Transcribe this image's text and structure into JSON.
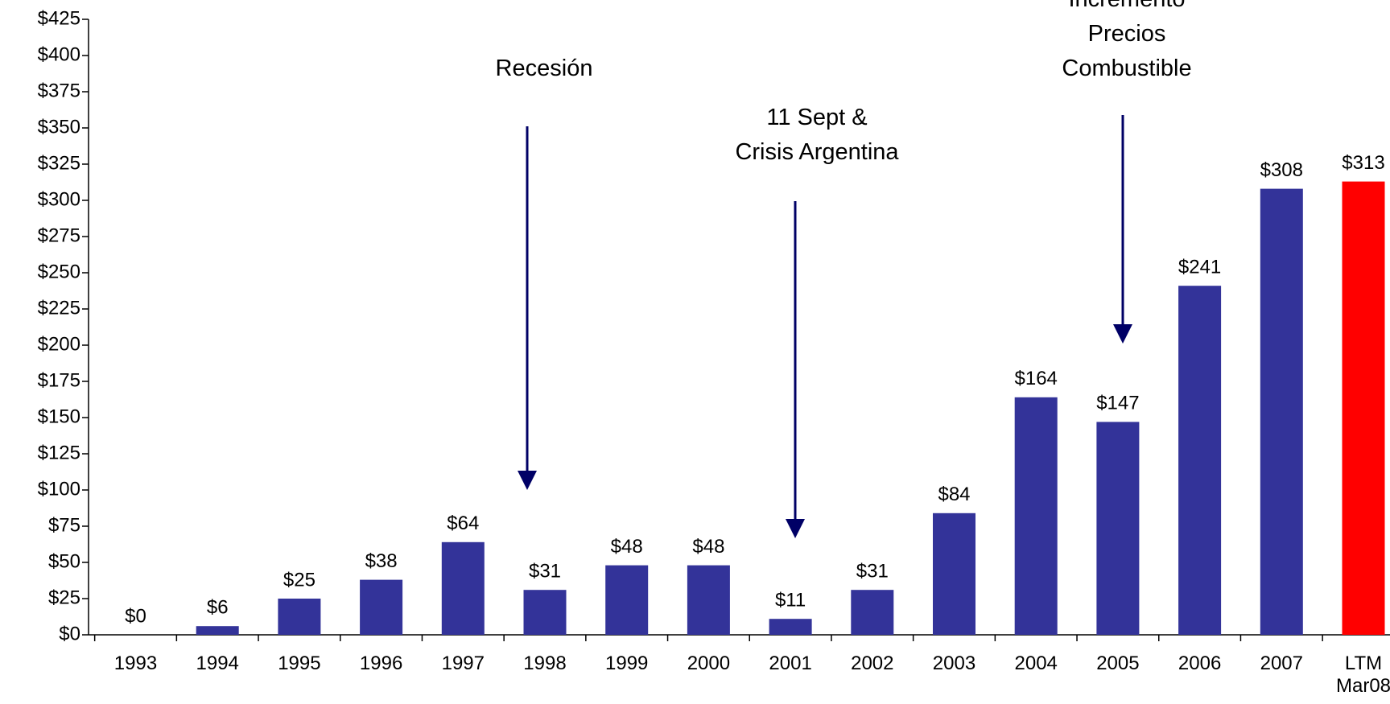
{
  "chart_data": {
    "type": "bar",
    "categories": [
      "1993",
      "1994",
      "1995",
      "1996",
      "1997",
      "1998",
      "1999",
      "2000",
      "2001",
      "2002",
      "2003",
      "2004",
      "2005",
      "2006",
      "2007",
      "LTM\nMar08"
    ],
    "values": [
      0,
      6,
      25,
      38,
      64,
      31,
      48,
      48,
      11,
      31,
      84,
      164,
      147,
      241,
      308,
      313
    ],
    "value_labels": [
      "$0",
      "$6",
      "$25",
      "$38",
      "$64",
      "$31",
      "$48",
      "$48",
      "$11",
      "$31",
      "$84",
      "$164",
      "$147",
      "$241",
      "$308",
      "$313"
    ],
    "colors": [
      "#333399",
      "#333399",
      "#333399",
      "#333399",
      "#333399",
      "#333399",
      "#333399",
      "#333399",
      "#333399",
      "#333399",
      "#333399",
      "#333399",
      "#333399",
      "#333399",
      "#333399",
      "#ff0000"
    ],
    "ylim": [
      0,
      425
    ],
    "yticks": [
      {
        "value": 0,
        "label": "$0"
      },
      {
        "value": 25,
        "label": "$25"
      },
      {
        "value": 50,
        "label": "$50"
      },
      {
        "value": 75,
        "label": "$75"
      },
      {
        "value": 100,
        "label": "$100"
      },
      {
        "value": 125,
        "label": "$125"
      },
      {
        "value": 150,
        "label": "$150"
      },
      {
        "value": 175,
        "label": "$175"
      },
      {
        "value": 200,
        "label": "$200"
      },
      {
        "value": 225,
        "label": "$225"
      },
      {
        "value": 250,
        "label": "$250"
      },
      {
        "value": 275,
        "label": "$275"
      },
      {
        "value": 300,
        "label": "$300"
      },
      {
        "value": 325,
        "label": "$325"
      },
      {
        "value": 350,
        "label": "$350"
      },
      {
        "value": 375,
        "label": "$375"
      },
      {
        "value": 400,
        "label": "$400"
      },
      {
        "value": 425,
        "label": "$425"
      }
    ],
    "annotations": [
      "Recesión",
      "11 Sept &\nCrisis Argentina",
      "Incremento\nPrecios\nCombustible"
    ]
  }
}
